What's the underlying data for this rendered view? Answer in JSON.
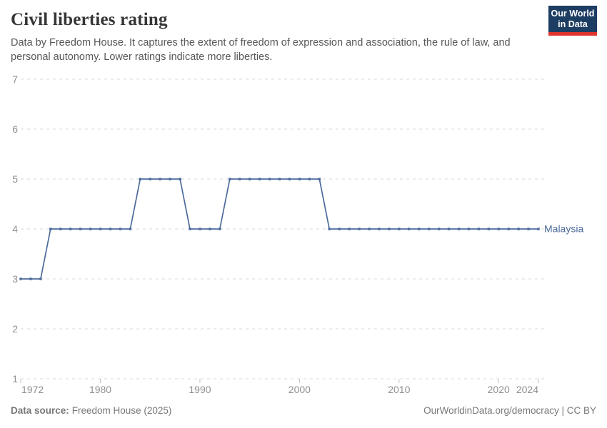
{
  "header": {
    "title": "Civil liberties rating",
    "subtitle_lines": [
      "Data by Freedom House. It captures the extent of freedom of expression and association, the rule of law, and",
      "personal autonomy. Lower ratings indicate more liberties."
    ],
    "logo": {
      "line1": "Our World",
      "line2": "in Data"
    }
  },
  "chart_data": {
    "type": "line",
    "title": "Civil liberties rating",
    "xlabel": "",
    "ylabel": "",
    "ylim": [
      1,
      7
    ],
    "y_ticks": [
      1,
      2,
      3,
      4,
      5,
      6,
      7
    ],
    "x_ticks": [
      1972,
      1980,
      1990,
      2000,
      2010,
      2020,
      2024
    ],
    "grid": true,
    "legend_position": "end-of-line",
    "series": [
      {
        "name": "Malaysia",
        "color": "#4c6a9c",
        "x": [
          1972,
          1973,
          1974,
          1975,
          1976,
          1977,
          1978,
          1979,
          1980,
          1981,
          1982,
          1983,
          1984,
          1985,
          1986,
          1987,
          1988,
          1989,
          1990,
          1991,
          1992,
          1993,
          1994,
          1995,
          1996,
          1997,
          1998,
          1999,
          2000,
          2001,
          2002,
          2003,
          2004,
          2005,
          2006,
          2007,
          2008,
          2009,
          2010,
          2011,
          2012,
          2013,
          2014,
          2015,
          2016,
          2017,
          2018,
          2019,
          2020,
          2021,
          2022,
          2023,
          2024
        ],
        "values": [
          3,
          3,
          3,
          4,
          4,
          4,
          4,
          4,
          4,
          4,
          4,
          4,
          5,
          5,
          5,
          5,
          5,
          4,
          4,
          4,
          4,
          5,
          5,
          5,
          5,
          5,
          5,
          5,
          5,
          5,
          5,
          4,
          4,
          4,
          4,
          4,
          4,
          4,
          4,
          4,
          4,
          4,
          4,
          4,
          4,
          4,
          4,
          4,
          4,
          4,
          4,
          4,
          4
        ]
      }
    ]
  },
  "footer": {
    "datasource_label": "Data source:",
    "datasource_value": "Freedom House (2025)",
    "attribution": "OurWorldinData.org/democracy | CC BY"
  },
  "colors": {
    "line": "#4c6a9c",
    "grid": "#d9d9d9",
    "tick": "#c2c2c2",
    "axis_text": "#8f8f8f",
    "logo_bg": "#1d3d63",
    "logo_stripe": "#e0342e"
  }
}
